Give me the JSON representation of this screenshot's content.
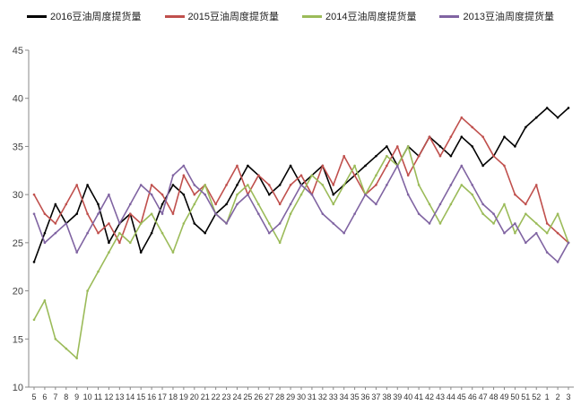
{
  "chart_data": {
    "type": "line",
    "title": "",
    "xlabel": "",
    "ylabel": "",
    "ylim": [
      10,
      45
    ],
    "yticks": [
      10,
      15,
      20,
      25,
      30,
      35,
      40,
      45
    ],
    "grid": false,
    "legend_position": "top",
    "x": [
      "5",
      "6",
      "7",
      "8",
      "9",
      "10",
      "11",
      "12",
      "13",
      "14",
      "15",
      "16",
      "17",
      "18",
      "19",
      "20",
      "21",
      "22",
      "23",
      "24",
      "25",
      "26",
      "27",
      "28",
      "29",
      "30",
      "31",
      "32",
      "33",
      "34",
      "35",
      "36",
      "37",
      "38",
      "39",
      "40",
      "41",
      "42",
      "43",
      "44",
      "45",
      "46",
      "47",
      "48",
      "49",
      "50",
      "51",
      "52",
      "1",
      "2",
      "3"
    ],
    "series": [
      {
        "name": "2016豆油周度提货量",
        "color": "#000000",
        "values": [
          23,
          26,
          29,
          27,
          28,
          31,
          29,
          25,
          27,
          28,
          24,
          26,
          29,
          31,
          30,
          27,
          26,
          28,
          29,
          31,
          33,
          32,
          30,
          31,
          33,
          31,
          32,
          33,
          30,
          31,
          32,
          33,
          34,
          35,
          33,
          35,
          34,
          36,
          35,
          34,
          36,
          35,
          33,
          34,
          36,
          35,
          37,
          38,
          39,
          38,
          39
        ]
      },
      {
        "name": "2015豆油周度提货量",
        "color": "#c0504d",
        "values": [
          30,
          28,
          27,
          29,
          31,
          28,
          26,
          27,
          25,
          28,
          27,
          31,
          30,
          28,
          32,
          30,
          31,
          29,
          31,
          33,
          30,
          32,
          31,
          29,
          31,
          32,
          30,
          33,
          31,
          34,
          32,
          30,
          31,
          33,
          35,
          32,
          34,
          36,
          34,
          36,
          38,
          37,
          36,
          34,
          33,
          30,
          29,
          31,
          27,
          26,
          25
        ]
      },
      {
        "name": "2014豆油周度提货量",
        "color": "#9bbb59",
        "values": [
          17,
          19,
          15,
          14,
          13,
          20,
          22,
          24,
          26,
          25,
          27,
          28,
          26,
          24,
          27,
          29,
          31,
          28,
          27,
          30,
          31,
          29,
          27,
          25,
          28,
          30,
          32,
          31,
          29,
          31,
          33,
          30,
          32,
          34,
          33,
          35,
          31,
          29,
          27,
          29,
          31,
          30,
          28,
          27,
          29,
          26,
          28,
          27,
          26,
          28,
          25
        ]
      },
      {
        "name": "2013豆油周度提货量",
        "color": "#8064a2",
        "values": [
          28,
          25,
          26,
          27,
          24,
          26,
          28,
          30,
          27,
          29,
          31,
          30,
          28,
          32,
          33,
          31,
          30,
          28,
          27,
          29,
          30,
          28,
          26,
          27,
          29,
          31,
          30,
          28,
          27,
          26,
          28,
          30,
          29,
          31,
          33,
          30,
          28,
          27,
          29,
          31,
          33,
          31,
          29,
          28,
          26,
          27,
          25,
          26,
          24,
          23,
          25
        ]
      }
    ]
  }
}
